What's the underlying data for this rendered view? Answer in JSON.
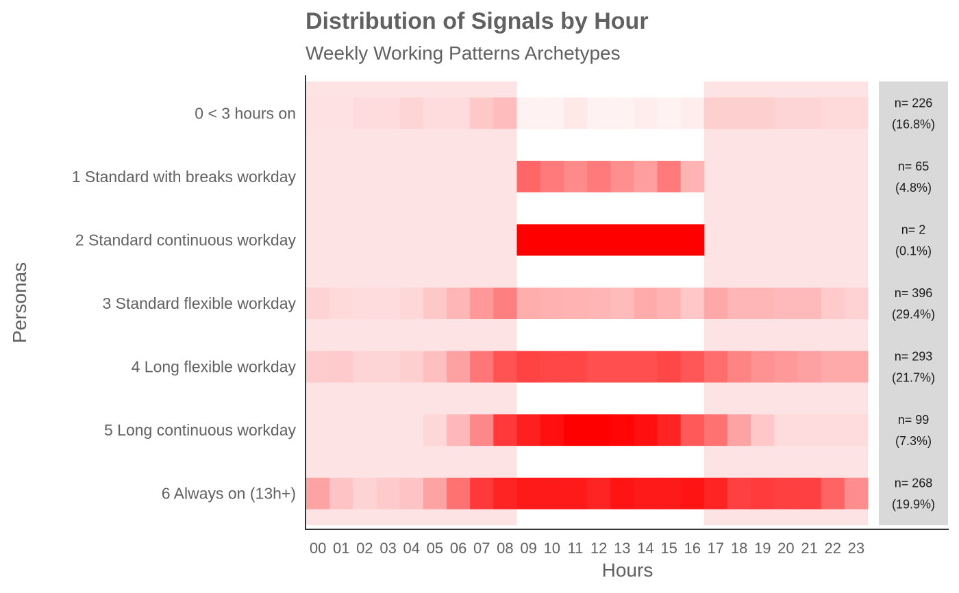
{
  "chart_data": {
    "type": "heatmap",
    "title": "Distribution of Signals by Hour",
    "subtitle": "Weekly Working Patterns Archetypes",
    "xlabel": "Hours",
    "ylabel": "Personas",
    "x": [
      "00",
      "01",
      "02",
      "03",
      "04",
      "05",
      "06",
      "07",
      "08",
      "09",
      "10",
      "11",
      "12",
      "13",
      "14",
      "15",
      "16",
      "17",
      "18",
      "19",
      "20",
      "21",
      "22",
      "23"
    ],
    "core_hours": [
      "09",
      "16"
    ],
    "colors": {
      "high": "#ff0000",
      "off_hours_band": "#fee3e4",
      "core_hours_band": "#ffffff",
      "counts_panel": "#d9d9d9",
      "axis": "#333333"
    },
    "series": [
      {
        "name": "6 Always on (13h+)",
        "n_label": "n= 268",
        "pct_label": "(19.9%)",
        "values": [
          0.28,
          0.14,
          0.07,
          0.11,
          0.14,
          0.28,
          0.5,
          0.75,
          0.84,
          0.9,
          0.9,
          0.9,
          0.86,
          0.92,
          0.9,
          0.9,
          0.92,
          0.84,
          0.72,
          0.74,
          0.72,
          0.72,
          0.56,
          0.38
        ]
      },
      {
        "name": "5 Long continuous workday",
        "n_label": "n= 99",
        "pct_label": "(7.3%)",
        "values": [
          0,
          0,
          0,
          0,
          0,
          0.05,
          0.19,
          0.4,
          0.75,
          0.88,
          0.94,
          1,
          1,
          0.98,
          0.94,
          0.86,
          0.65,
          0.5,
          0.28,
          0.12,
          0.03,
          0.03,
          0.03,
          0.03
        ]
      },
      {
        "name": "4 Long flexible workday",
        "n_label": "n= 293",
        "pct_label": "(21.7%)",
        "values": [
          0.1,
          0.11,
          0.06,
          0.06,
          0.09,
          0.16,
          0.29,
          0.48,
          0.64,
          0.74,
          0.72,
          0.72,
          0.69,
          0.69,
          0.69,
          0.72,
          0.66,
          0.52,
          0.42,
          0.36,
          0.33,
          0.29,
          0.25,
          0.25
        ]
      },
      {
        "name": "3 Standard flexible workday",
        "n_label": "n= 396",
        "pct_label": "(29.4%)",
        "values": [
          0.07,
          0.04,
          0.03,
          0.03,
          0.05,
          0.12,
          0.2,
          0.33,
          0.44,
          0.32,
          0.31,
          0.3,
          0.29,
          0.27,
          0.33,
          0.3,
          0.22,
          0.26,
          0.2,
          0.2,
          0.18,
          0.18,
          0.11,
          0.08
        ]
      },
      {
        "name": "2 Standard continuous workday",
        "n_label": "n= 2",
        "pct_label": "(0.1%)",
        "values": [
          0,
          0,
          0,
          0,
          0,
          0,
          0,
          0,
          0,
          1,
          1,
          1,
          1,
          1,
          1,
          1,
          1,
          0,
          0,
          0,
          0,
          0,
          0,
          0
        ]
      },
      {
        "name": "1 Standard with breaks workday",
        "n_label": "n= 65",
        "pct_label": "(4.8%)",
        "values": [
          0,
          0,
          0,
          0,
          0,
          0,
          0,
          0,
          0,
          0.6,
          0.52,
          0.46,
          0.52,
          0.44,
          0.38,
          0.52,
          0.3,
          0,
          0,
          0,
          0,
          0,
          0,
          0
        ]
      },
      {
        "name": "0 < 3 hours on",
        "n_label": "n= 226",
        "pct_label": "(16.8%)",
        "values": [
          0.01,
          0.01,
          0.03,
          0.03,
          0.06,
          0.03,
          0.03,
          0.12,
          0.17,
          0.05,
          0.05,
          0.09,
          0.05,
          0.05,
          0.07,
          0.05,
          0.07,
          0.09,
          0.09,
          0.09,
          0.06,
          0.06,
          0.04,
          0.04
        ]
      }
    ]
  }
}
